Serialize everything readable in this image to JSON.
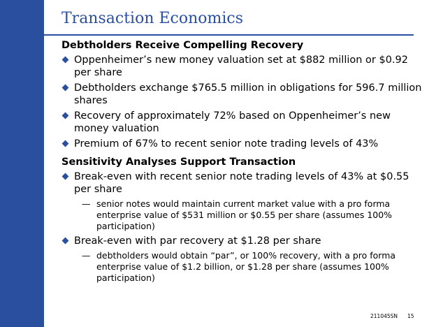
{
  "title": "Transaction Economics",
  "sections": [
    {
      "heading": "Debtholders Receive Compelling Recovery",
      "bullets": [
        "Oppenheimer’s new money valuation set at $882 million or $0.92 per share",
        "Debtholders exchange $765.5 million in obligations for 596.7 million shares",
        "Recovery of approximately 72% based on Oppenheimer’s new money valuation",
        "Premium of 67% to recent senior note trading levels of 43%"
      ]
    },
    {
      "heading": "Sensitivity Analyses Support Transaction",
      "bullets": [
        "Break-even with recent senior note trading levels of 43% at $0.55 per share",
        "Break-even with par recovery at $1.28 per share"
      ],
      "subs": [
        "senior notes would maintain current market value with a pro forma enterprise value of $531 million or $0.55 per share (assumes 100% participation)",
        "debtholders would obtain “par”, or 100% recovery, with a pro forma enterprise value of $1.2 billion, or $1.28 per share (assumes 100% participation)"
      ]
    }
  ],
  "sub_marker": "—",
  "footer": {
    "code": "211045SN",
    "page": "15"
  },
  "colors": {
    "accent": "#2a4f9e",
    "background": "#ffffff",
    "text": "#000000"
  }
}
